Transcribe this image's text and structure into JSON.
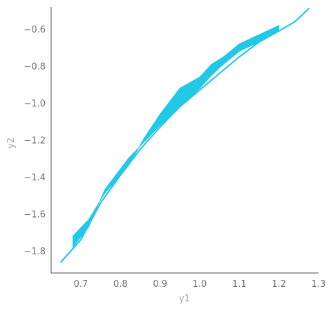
{
  "chart_data": {
    "type": "line",
    "title": "",
    "xlabel": "y1",
    "ylabel": "y2",
    "xlim": [
      0.625,
      1.3
    ],
    "ylim": [
      -1.92,
      -0.48
    ],
    "x_ticks": [
      0.7,
      0.8,
      0.9,
      1.0,
      1.1,
      1.2,
      1.3
    ],
    "x_tick_labels": [
      "0.7",
      "0.8",
      "0.9",
      "1.0",
      "1.1",
      "1.2",
      "1.3"
    ],
    "y_ticks": [
      -1.8,
      -1.6,
      -1.4,
      -1.2,
      -1.0,
      -0.8,
      -0.6
    ],
    "y_tick_labels": [
      "−1.8",
      "−1.6",
      "−1.4",
      "−1.2",
      "−1.0",
      "−0.8",
      "−0.6"
    ],
    "grid": false,
    "series": [
      {
        "color": "#22c8e8",
        "band_upper": [
          [
            0.68,
            -1.72
          ],
          [
            0.72,
            -1.63
          ],
          [
            0.76,
            -1.49
          ],
          [
            0.82,
            -1.34
          ],
          [
            0.86,
            -1.19
          ],
          [
            0.9,
            -1.06
          ],
          [
            0.95,
            -0.92
          ],
          [
            1.0,
            -0.86
          ],
          [
            1.03,
            -0.79
          ],
          [
            1.06,
            -0.75
          ],
          [
            1.1,
            -0.68
          ],
          [
            1.15,
            -0.63
          ],
          [
            1.2,
            -0.58
          ]
        ],
        "band_lower": [
          [
            1.2,
            -0.61
          ],
          [
            1.15,
            -0.67
          ],
          [
            1.1,
            -0.72
          ],
          [
            1.06,
            -0.79
          ],
          [
            1.03,
            -0.85
          ],
          [
            1.0,
            -0.92
          ],
          [
            0.95,
            -1.02
          ],
          [
            0.9,
            -1.12
          ],
          [
            0.86,
            -1.21
          ],
          [
            0.82,
            -1.3
          ],
          [
            0.76,
            -1.47
          ],
          [
            0.72,
            -1.67
          ],
          [
            0.68,
            -1.78
          ]
        ],
        "values": [
          [
            0.65,
            -1.86
          ],
          [
            0.7,
            -1.74
          ],
          [
            0.75,
            -1.54
          ],
          [
            0.8,
            -1.39
          ],
          [
            0.85,
            -1.25
          ],
          [
            0.9,
            -1.13
          ],
          [
            0.95,
            -1.02
          ],
          [
            1.0,
            -0.93
          ],
          [
            1.05,
            -0.84
          ],
          [
            1.1,
            -0.75
          ],
          [
            1.15,
            -0.67
          ],
          [
            1.2,
            -0.61
          ],
          [
            1.24,
            -0.56
          ],
          [
            1.275,
            -0.49
          ]
        ]
      }
    ]
  }
}
